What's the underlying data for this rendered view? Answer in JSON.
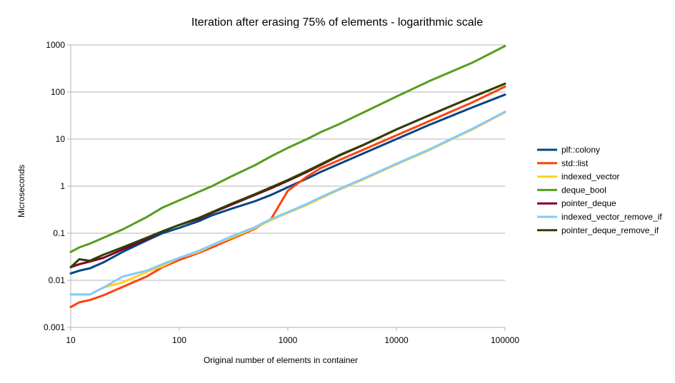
{
  "chart_data": {
    "type": "line",
    "title": "Iteration after erasing 75% of elements - logarithmic scale",
    "xlabel": "Original number of elements in container",
    "ylabel": "Microseconds",
    "xscale": "log",
    "yscale": "log",
    "xlim": [
      10,
      100000
    ],
    "ylim": [
      0.001,
      1000
    ],
    "x_ticks": [
      "10",
      "100",
      "1000",
      "10000",
      "100000"
    ],
    "y_ticks": [
      "0.001",
      "0.01",
      "0.1",
      "1",
      "10",
      "100",
      "1000"
    ],
    "grid": "horizontal major",
    "legend_position": "right",
    "x": [
      10,
      12,
      15,
      20,
      30,
      50,
      70,
      100,
      150,
      200,
      300,
      500,
      700,
      1000,
      1500,
      2000,
      3000,
      5000,
      10000,
      20000,
      50000,
      100000
    ],
    "series": [
      {
        "name": "plf::colony",
        "color": "#004586",
        "values": [
          0.014,
          0.016,
          0.018,
          0.024,
          0.04,
          0.07,
          0.1,
          0.13,
          0.18,
          0.24,
          0.33,
          0.48,
          0.65,
          0.95,
          1.45,
          2.0,
          3.0,
          5.0,
          10.0,
          20.0,
          47.0,
          88.0
        ]
      },
      {
        "name": "std::list",
        "color": "#ff420e",
        "values": [
          0.0027,
          0.0034,
          0.0038,
          0.0048,
          0.0072,
          0.012,
          0.019,
          0.027,
          0.038,
          0.05,
          0.075,
          0.125,
          0.2,
          0.8,
          1.6,
          2.4,
          3.6,
          6.0,
          12.0,
          24.0,
          60.0,
          130.0
        ]
      },
      {
        "name": "indexed_vector",
        "color": "#ffd320",
        "values": [
          0.005,
          0.005,
          0.005,
          0.007,
          0.009,
          0.015,
          0.02,
          0.03,
          0.04,
          0.055,
          0.08,
          0.13,
          0.19,
          0.27,
          0.4,
          0.55,
          0.85,
          1.4,
          2.9,
          5.8,
          16.0,
          37.0
        ]
      },
      {
        "name": "deque_bool",
        "color": "#579d1c",
        "values": [
          0.04,
          0.05,
          0.06,
          0.08,
          0.12,
          0.22,
          0.35,
          0.5,
          0.75,
          1.0,
          1.6,
          2.8,
          4.3,
          6.5,
          10.0,
          14.0,
          21.0,
          37.0,
          80.0,
          170.0,
          420.0,
          950.0
        ]
      },
      {
        "name": "pointer_deque",
        "color": "#7e0021",
        "values": [
          0.019,
          0.022,
          0.025,
          0.03,
          0.045,
          0.075,
          0.11,
          0.15,
          0.2,
          0.27,
          0.4,
          0.65,
          0.9,
          1.3,
          2.0,
          2.8,
          4.5,
          7.5,
          16.0,
          32.0,
          78.0,
          150.0
        ]
      },
      {
        "name": "indexed_vector_remove_if",
        "color": "#83caff",
        "values": [
          0.005,
          0.005,
          0.005,
          0.007,
          0.012,
          0.016,
          0.022,
          0.03,
          0.042,
          0.056,
          0.085,
          0.135,
          0.2,
          0.28,
          0.42,
          0.58,
          0.88,
          1.45,
          3.0,
          6.0,
          16.5,
          38.0
        ]
      },
      {
        "name": "pointer_deque_remove_if",
        "color": "#314004",
        "values": [
          0.019,
          0.028,
          0.026,
          0.035,
          0.05,
          0.08,
          0.11,
          0.15,
          0.21,
          0.28,
          0.42,
          0.68,
          0.95,
          1.35,
          2.1,
          2.9,
          4.6,
          7.6,
          16.0,
          32.0,
          78.0,
          150.0
        ]
      }
    ]
  }
}
